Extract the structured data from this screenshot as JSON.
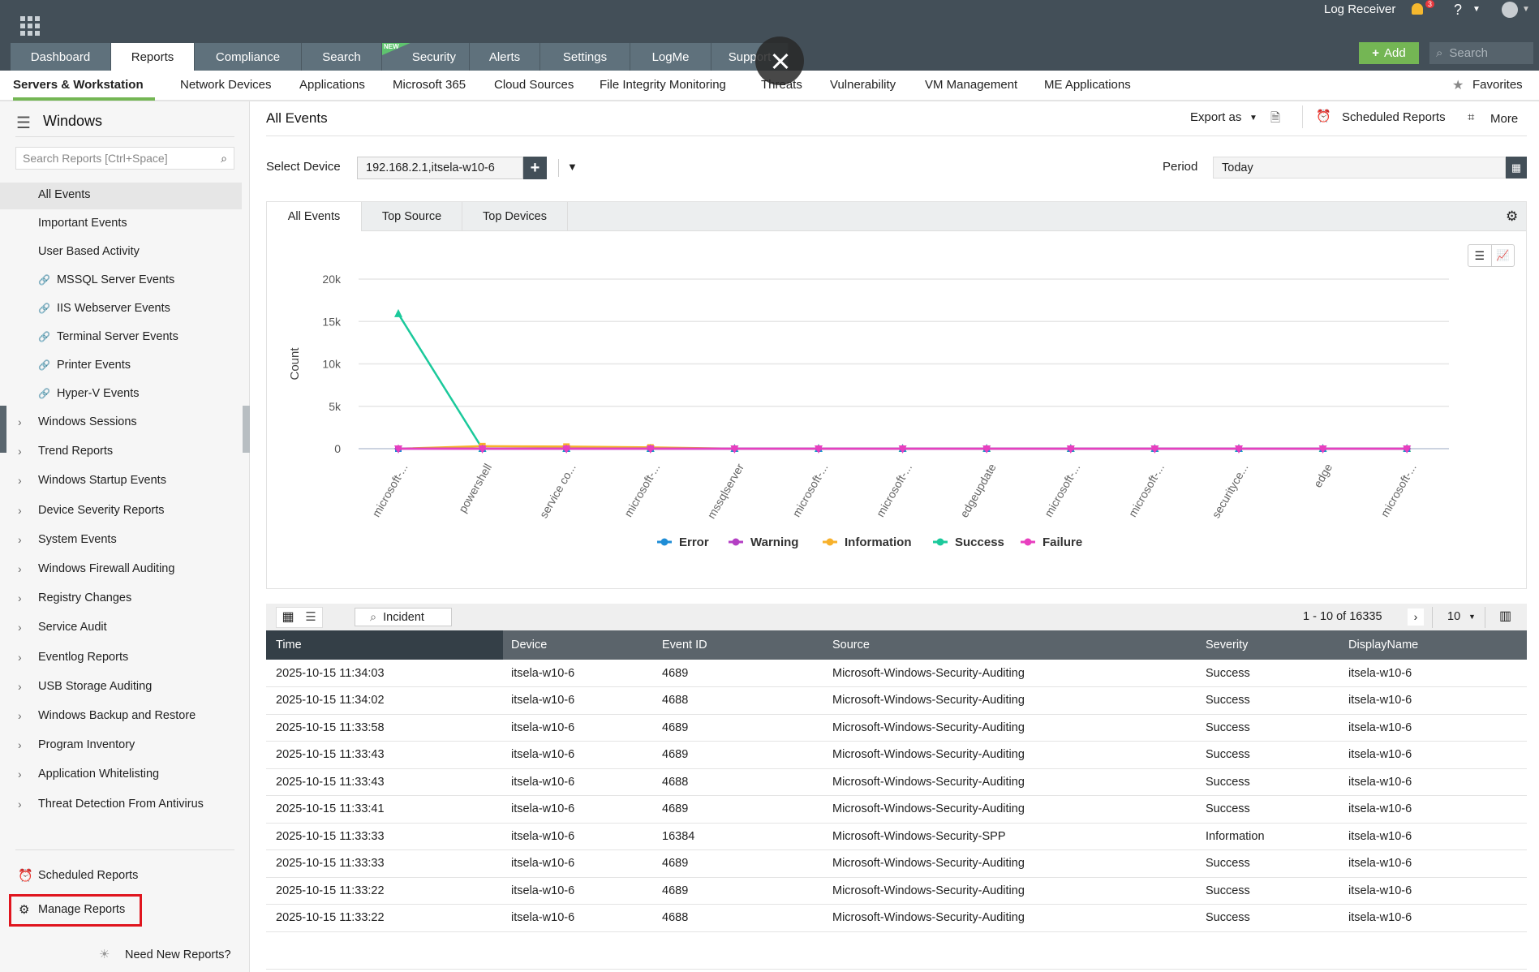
{
  "topbar": {
    "log_receiver": "Log Receiver",
    "notification_count": "3",
    "help": "?",
    "add_label": "Add",
    "search_placeholder": "Search"
  },
  "main_tabs": [
    {
      "label": "Dashboard"
    },
    {
      "label": "Reports",
      "active": true
    },
    {
      "label": "Compliance"
    },
    {
      "label": "Search"
    },
    {
      "label": "Security",
      "badge": "NEW"
    },
    {
      "label": "Alerts"
    },
    {
      "label": "Settings"
    },
    {
      "label": "LogMe"
    },
    {
      "label": "Support"
    }
  ],
  "sub_nav": [
    {
      "label": "Servers & Workstation",
      "active": true
    },
    {
      "label": "Network Devices"
    },
    {
      "label": "Applications"
    },
    {
      "label": "Microsoft 365"
    },
    {
      "label": "Cloud Sources"
    },
    {
      "label": "File Integrity Monitoring"
    },
    {
      "label": "Threats"
    },
    {
      "label": "Vulnerability"
    },
    {
      "label": "VM Management"
    },
    {
      "label": "ME Applications"
    }
  ],
  "favorites": "Favorites",
  "sidebar": {
    "title": "Windows",
    "search_placeholder": "Search Reports [Ctrl+Space]",
    "items": [
      {
        "label": "All Events"
      },
      {
        "label": "Important Events"
      },
      {
        "label": "User Based Activity"
      },
      {
        "label": "MSSQL Server Events"
      },
      {
        "label": "IIS Webserver Events"
      },
      {
        "label": "Terminal Server Events"
      },
      {
        "label": "Printer Events"
      },
      {
        "label": "Hyper-V Events"
      }
    ],
    "groups": [
      {
        "label": "Windows Sessions"
      },
      {
        "label": "Trend Reports"
      },
      {
        "label": "Windows Startup Events"
      },
      {
        "label": "Device Severity Reports"
      },
      {
        "label": "System Events"
      },
      {
        "label": "Windows Firewall Auditing"
      },
      {
        "label": "Registry Changes"
      },
      {
        "label": "Service Audit"
      },
      {
        "label": "Eventlog Reports"
      },
      {
        "label": "USB Storage Auditing"
      },
      {
        "label": "Windows Backup and Restore"
      },
      {
        "label": "Program Inventory"
      },
      {
        "label": "Application Whitelisting"
      },
      {
        "label": "Threat Detection From Antivirus"
      }
    ],
    "scheduled_reports": "Scheduled Reports",
    "manage_reports": "Manage Reports",
    "need_new": "Need New Reports?"
  },
  "page": {
    "title": "All Events",
    "export_as": "Export as",
    "scheduled_reports": "Scheduled Reports",
    "more": "More",
    "select_device_label": "Select Device",
    "device_value": "192.168.2.1,itsela-w10-6",
    "period_label": "Period",
    "period_value": "Today"
  },
  "chart_tabs": [
    {
      "label": "All Events"
    },
    {
      "label": "Top Source"
    },
    {
      "label": "Top Devices"
    }
  ],
  "chart_data": {
    "type": "line",
    "ylabel": "Count",
    "ylim": [
      0,
      20000
    ],
    "y_ticks": [
      "0",
      "5k",
      "10k",
      "15k",
      "20k"
    ],
    "y_tick_values": [
      0,
      5000,
      10000,
      15000,
      20000
    ],
    "grid": true,
    "legend_position": "bottom",
    "categories": [
      "microsoft-...",
      "powershell",
      "service co...",
      "microsoft-...",
      "mssqlserver",
      "microsoft-...",
      "microsoft-...",
      "edgeupdate",
      "microsoft-...",
      "microsoft-...",
      "securityce...",
      "edge",
      "microsoft-..."
    ],
    "series": [
      {
        "name": "Error",
        "color": "#1f8dd6",
        "values": [
          0,
          0,
          0,
          0,
          0,
          0,
          0,
          0,
          0,
          0,
          0,
          0,
          0
        ]
      },
      {
        "name": "Warning",
        "color": "#b43fc4",
        "values": [
          0,
          0,
          0,
          0,
          0,
          0,
          0,
          0,
          0,
          0,
          0,
          0,
          0
        ]
      },
      {
        "name": "Information",
        "color": "#f7b12b",
        "values": [
          0,
          300,
          250,
          150,
          0,
          0,
          0,
          0,
          0,
          0,
          0,
          0,
          0
        ]
      },
      {
        "name": "Success",
        "color": "#1bc99b",
        "values": [
          15900,
          0,
          0,
          0,
          0,
          0,
          0,
          0,
          0,
          0,
          0,
          0,
          0
        ]
      },
      {
        "name": "Failure",
        "color": "#e83fbf",
        "values": [
          0,
          0,
          0,
          0,
          0,
          0,
          0,
          0,
          0,
          0,
          0,
          0,
          0
        ]
      }
    ]
  },
  "table": {
    "incident_label": "Incident",
    "pagination": "1 - 10 of 16335",
    "page_size": "10",
    "columns": [
      "Time",
      "Device",
      "Event ID",
      "Source",
      "Severity",
      "DisplayName"
    ],
    "rows": [
      [
        "2025-10-15 11:34:03",
        "itsela-w10-6",
        "4689",
        "Microsoft-Windows-Security-Auditing",
        "Success",
        "itsela-w10-6"
      ],
      [
        "2025-10-15 11:34:02",
        "itsela-w10-6",
        "4688",
        "Microsoft-Windows-Security-Auditing",
        "Success",
        "itsela-w10-6"
      ],
      [
        "2025-10-15 11:33:58",
        "itsela-w10-6",
        "4689",
        "Microsoft-Windows-Security-Auditing",
        "Success",
        "itsela-w10-6"
      ],
      [
        "2025-10-15 11:33:43",
        "itsela-w10-6",
        "4689",
        "Microsoft-Windows-Security-Auditing",
        "Success",
        "itsela-w10-6"
      ],
      [
        "2025-10-15 11:33:43",
        "itsela-w10-6",
        "4688",
        "Microsoft-Windows-Security-Auditing",
        "Success",
        "itsela-w10-6"
      ],
      [
        "2025-10-15 11:33:41",
        "itsela-w10-6",
        "4689",
        "Microsoft-Windows-Security-Auditing",
        "Success",
        "itsela-w10-6"
      ],
      [
        "2025-10-15 11:33:33",
        "itsela-w10-6",
        "16384",
        "Microsoft-Windows-Security-SPP",
        "Information",
        "itsela-w10-6"
      ],
      [
        "2025-10-15 11:33:33",
        "itsela-w10-6",
        "4689",
        "Microsoft-Windows-Security-Auditing",
        "Success",
        "itsela-w10-6"
      ],
      [
        "2025-10-15 11:33:22",
        "itsela-w10-6",
        "4689",
        "Microsoft-Windows-Security-Auditing",
        "Success",
        "itsela-w10-6"
      ],
      [
        "2025-10-15 11:33:22",
        "itsela-w10-6",
        "4688",
        "Microsoft-Windows-Security-Auditing",
        "Success",
        "itsela-w10-6"
      ]
    ]
  }
}
